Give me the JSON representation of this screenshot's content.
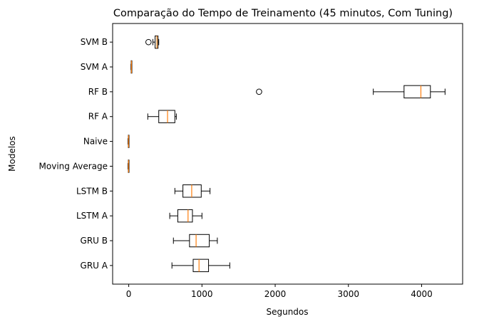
{
  "chart_data": {
    "type": "boxplot",
    "orientation": "horizontal",
    "title": "Comparação do Tempo de Treinamento (45 minutos, Com Tuning)",
    "xlabel": "Segundos",
    "ylabel": "Modelos",
    "xlim": [
      -220,
      4560
    ],
    "x_ticks": [
      0,
      1000,
      2000,
      3000,
      4000
    ],
    "grid": false,
    "box_color": "#000000",
    "median_color": "#ff7f0e",
    "categories": [
      "GRU A",
      "GRU B",
      "LSTM A",
      "LSTM B",
      "Moving Average",
      "Naive",
      "RF A",
      "RF B",
      "SVM A",
      "SVM B"
    ],
    "boxes": [
      {
        "name": "GRU A",
        "whislo": 590,
        "q1": 880,
        "med": 960,
        "q3": 1090,
        "whishi": 1380,
        "fliers": []
      },
      {
        "name": "GRU B",
        "whislo": 610,
        "q1": 830,
        "med": 920,
        "q3": 1100,
        "whishi": 1210,
        "fliers": []
      },
      {
        "name": "LSTM A",
        "whislo": 560,
        "q1": 670,
        "med": 810,
        "q3": 870,
        "whishi": 1000,
        "fliers": []
      },
      {
        "name": "LSTM B",
        "whislo": 630,
        "q1": 740,
        "med": 860,
        "q3": 990,
        "whishi": 1110,
        "fliers": []
      },
      {
        "name": "Moving Average",
        "whislo": -10,
        "q1": -6,
        "med": -3,
        "q3": 0,
        "whishi": 3,
        "fliers": []
      },
      {
        "name": "Naive",
        "whislo": -10,
        "q1": -6,
        "med": -3,
        "q3": 0,
        "whishi": 3,
        "fliers": []
      },
      {
        "name": "RF A",
        "whislo": 260,
        "q1": 410,
        "med": 530,
        "q3": 630,
        "whishi": 650,
        "fliers": []
      },
      {
        "name": "RF B",
        "whislo": 3340,
        "q1": 3760,
        "med": 3990,
        "q3": 4120,
        "whishi": 4320,
        "fliers": [
          1780
        ]
      },
      {
        "name": "SVM A",
        "whislo": 30,
        "q1": 33,
        "med": 37,
        "q3": 40,
        "whishi": 43,
        "fliers": []
      },
      {
        "name": "SVM B",
        "whislo": 330,
        "q1": 360,
        "med": 385,
        "q3": 400,
        "whishi": 410,
        "fliers": [
          270
        ]
      }
    ]
  }
}
